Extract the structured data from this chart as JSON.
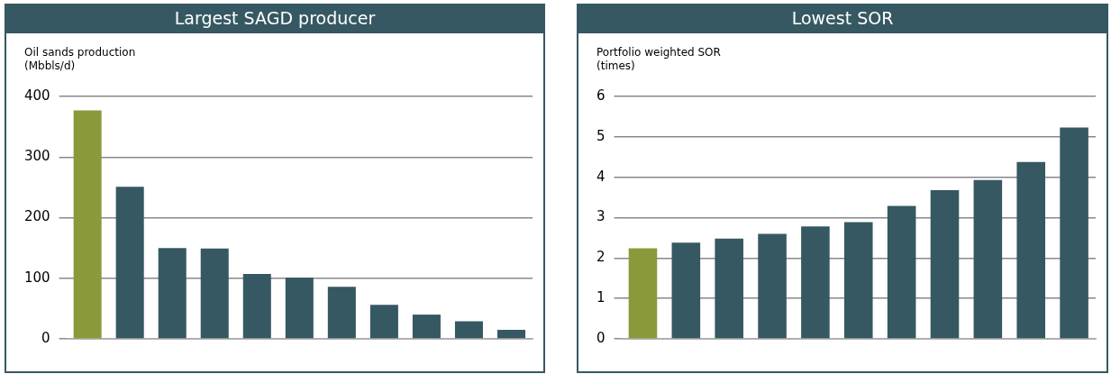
{
  "chart_data": [
    {
      "type": "bar",
      "title": "Largest SAGD producer",
      "ylabel": "Oil sands production\n(Mbbls/d)",
      "categories": [
        null,
        null,
        null,
        null,
        null,
        null,
        null,
        null,
        null,
        null,
        null
      ],
      "values": [
        377,
        251,
        150,
        149,
        107,
        101,
        86,
        56,
        40,
        29,
        15
      ],
      "colors": [
        "#8a9a3a",
        "#365862",
        "#365862",
        "#365862",
        "#365862",
        "#365862",
        "#365862",
        "#365862",
        "#365862",
        "#365862",
        "#365862"
      ],
      "ylim": [
        0,
        400
      ],
      "yticks": [
        0,
        100,
        200,
        300,
        400
      ],
      "grid": "y",
      "tick_labels": "y"
    },
    {
      "type": "bar",
      "title": "Lowest SOR",
      "ylabel": "Portfolio weighted SOR\n(times)",
      "categories": [
        null,
        null,
        null,
        null,
        null,
        null,
        null,
        null,
        null,
        null,
        null
      ],
      "values": [
        2.24,
        2.38,
        2.48,
        2.6,
        2.78,
        2.89,
        3.29,
        3.68,
        3.93,
        4.38,
        5.23
      ],
      "colors": [
        "#8a9a3a",
        "#365862",
        "#365862",
        "#365862",
        "#365862",
        "#365862",
        "#365862",
        "#365862",
        "#365862",
        "#365862",
        "#365862"
      ],
      "ylim": [
        0,
        6
      ],
      "yticks": [
        0,
        1,
        2,
        3,
        4,
        5,
        6
      ],
      "grid": "y",
      "tick_labels": "y"
    }
  ]
}
